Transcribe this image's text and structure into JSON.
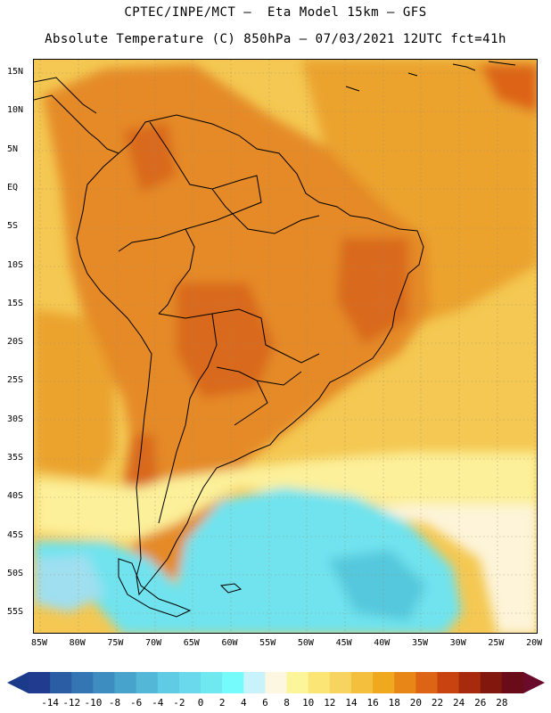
{
  "header": {
    "line1": "CPTEC/INPE/MCT –  Eta Model 15km – GFS",
    "line2": "Absolute Temperature (C) 850hPa – 07/03/2021 12UTC fct=41h"
  },
  "map": {
    "lat_labels": [
      "15N",
      "10N",
      "5N",
      "EQ",
      "5S",
      "10S",
      "15S",
      "20S",
      "25S",
      "30S",
      "35S",
      "40S",
      "45S",
      "50S",
      "55S"
    ],
    "lon_labels": [
      "85W",
      "80W",
      "75W",
      "70W",
      "65W",
      "60W",
      "55W",
      "50W",
      "45W",
      "40W",
      "35W",
      "30W",
      "25W",
      "20W"
    ]
  },
  "colorbar": {
    "labels": [
      "-14",
      "-12",
      "-10",
      "-8",
      "-6",
      "-4",
      "-2",
      "0",
      "2",
      "4",
      "6",
      "8",
      "10",
      "12",
      "14",
      "16",
      "18",
      "20",
      "22",
      "24",
      "26",
      "28"
    ],
    "colors": [
      "#213c8e",
      "#2b5da4",
      "#3476b4",
      "#3d8dc0",
      "#48a3cc",
      "#53b8d8",
      "#5fcbe4",
      "#6ad9ec",
      "#6fe8f0",
      "#75fbfb",
      "#c9f3fb",
      "#fdf7e2",
      "#fcf59a",
      "#fbe575",
      "#f7d35f",
      "#f4bf3c",
      "#f0a81f",
      "#e88717",
      "#dd6414",
      "#c8430f",
      "#a82a0c",
      "#82170e",
      "#6a0b19"
    ],
    "low_arrow_color": "#1c3a8a",
    "high_arrow_color": "#6a0b2b"
  },
  "colors": {
    "ocean_warm": "#f4c852",
    "ocean_hot": "#eba32d",
    "land_hot": "#e58a25",
    "land_very_hot": "#d9691c",
    "cool": "#fcf09a",
    "cold": "#6fe3ee",
    "colder": "#55c8dd",
    "pale": "#fdf4d9"
  }
}
